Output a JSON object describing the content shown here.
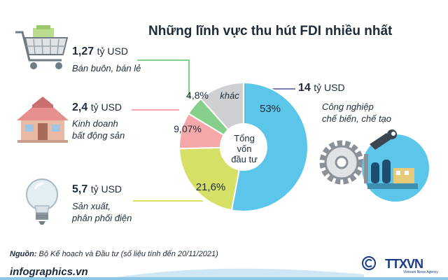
{
  "title": "Những lĩnh vực thu hút FDI nhiều nhất",
  "center_label": [
    "Tổng",
    "vốn",
    "đầu tư"
  ],
  "unit": "tỷ USD",
  "source_prefix": "Nguồn:",
  "source_text": "Bộ Kế hoạch và Đầu tư (số liệu tính đến 20/11/2021)",
  "site": "infographics.vn",
  "agency": "TTXVN",
  "agency_sub": "Vietnam News Agency",
  "colors": {
    "manufacturing": "#5bc6ea",
    "electricity": "#d7e066",
    "real_estate": "#f6a7a9",
    "retail": "#86cf8a",
    "other": "#cfd0d2",
    "text": "#1d2b3a"
  },
  "items": [
    {
      "amount": "1,27",
      "sector_lines": [
        "Bán buôn, bán lẻ"
      ],
      "icon": "shopping-cart-icon"
    },
    {
      "amount": "2,4",
      "sector_lines": [
        "Kinh doanh",
        "bất động sản"
      ],
      "icon": "house-icon"
    },
    {
      "amount": "5,7",
      "sector_lines": [
        "Sản xuất,",
        "phân phối điện"
      ],
      "icon": "light-bulb-icon"
    },
    {
      "amount": "14",
      "sector_lines": [
        "Công nghiệp",
        "chế biến, chế tạo"
      ],
      "icon": "factory-gear-icon"
    }
  ],
  "chart_data": {
    "type": "pie",
    "title": "Những lĩnh vực thu hút FDI nhiều nhất",
    "slices": [
      {
        "label": "53%",
        "value": 53,
        "color": "#5bc6ea"
      },
      {
        "label": "21,6%",
        "value": 21.6,
        "color": "#d7e066"
      },
      {
        "label": "9,07%",
        "value": 9.07,
        "color": "#f6a7a9"
      },
      {
        "label": "4,8%",
        "value": 4.8,
        "color": "#86cf8a"
      },
      {
        "label": "khác",
        "value": 11.53,
        "color": "#cfd0d2"
      }
    ]
  }
}
